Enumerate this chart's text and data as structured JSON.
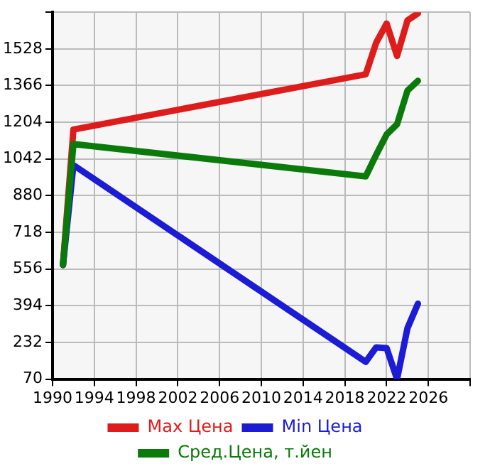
{
  "chart_data": {
    "type": "line",
    "x": [
      1991,
      1992,
      2020,
      2021,
      2022,
      2023,
      2024,
      2025
    ],
    "series": [
      {
        "name": "Max Цена",
        "color": "#dd1c1c",
        "values": [
          574,
          1172,
          1416,
          1555,
          1640,
          1497,
          1654,
          1685
        ]
      },
      {
        "name": "Min Цена",
        "color": "#1c1cd4",
        "values": [
          574,
          1015,
          146,
          210,
          207,
          70,
          295,
          403
        ]
      },
      {
        "name": "Сред.Цена, т.йен",
        "color": "#0a7a0a",
        "values": [
          574,
          1108,
          965,
          1060,
          1150,
          1195,
          1344,
          1387
        ]
      }
    ],
    "xlim": [
      1990,
      2030
    ],
    "xticks": [
      1990,
      1994,
      1998,
      2002,
      2006,
      2010,
      2014,
      2018,
      2022,
      2026,
      {
        "value": 2030,
        "label": null
      }
    ],
    "ylim": [
      70,
      1690
    ],
    "yticks": [
      70,
      232,
      394,
      556,
      718,
      880,
      1042,
      1204,
      1366,
      1528,
      {
        "value": 1690,
        "label": null
      }
    ],
    "grid": true,
    "legend": "bottom",
    "marker": "none",
    "line_style": "solid"
  }
}
